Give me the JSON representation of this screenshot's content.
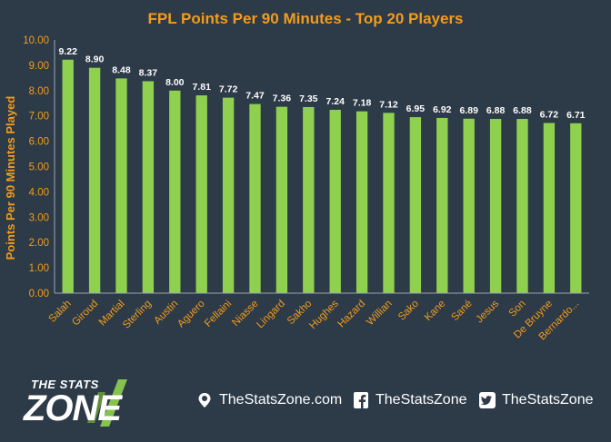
{
  "chart_data": {
    "type": "bar",
    "title": "FPL Points Per 90 Minutes - Top 20 Players",
    "xlabel": "",
    "ylabel": "Points Per 90 Minutes Played",
    "ylim": [
      0,
      10
    ],
    "yticks": [
      "0.00",
      "1.00",
      "2.00",
      "3.00",
      "4.00",
      "5.00",
      "6.00",
      "7.00",
      "8.00",
      "9.00",
      "10.00"
    ],
    "categories": [
      "Salah",
      "Giroud",
      "Martial",
      "Sterling",
      "Austin",
      "Aguero",
      "Fellaini",
      "Niasse",
      "Lingard",
      "Sakho",
      "Hughes",
      "Hazard",
      "Willian",
      "Sako",
      "Kane",
      "Sané",
      "Jesus",
      "Son",
      "De Bruyne",
      "Bernardo..."
    ],
    "values": [
      9.22,
      8.9,
      8.48,
      8.37,
      8.0,
      7.81,
      7.72,
      7.47,
      7.36,
      7.35,
      7.24,
      7.18,
      7.12,
      6.95,
      6.92,
      6.89,
      6.88,
      6.88,
      6.72,
      6.71
    ],
    "value_labels": [
      "9.22",
      "8.90",
      "8.48",
      "8.37",
      "8.00",
      "7.81",
      "7.72",
      "7.47",
      "7.36",
      "7.35",
      "7.24",
      "7.18",
      "7.12",
      "6.95",
      "6.92",
      "6.89",
      "6.88",
      "6.88",
      "6.72",
      "6.71"
    ],
    "grid": false,
    "legend": "none",
    "colors": {
      "bar": "#8fd14f",
      "title": "#f39c1a",
      "axis_text": "#f39c1a",
      "value_label": "#ffffff",
      "background": "#2d3a48",
      "axis_line": "#9aa5b1"
    }
  },
  "footer": {
    "logo_top": "THE STATS",
    "logo_bottom": "ZONE",
    "website": "TheStatsZone.com",
    "facebook": "TheStatsZone",
    "twitter": "TheStatsZone",
    "icons": {
      "website": "globe-pin-icon",
      "facebook": "facebook-icon",
      "twitter": "twitter-icon"
    }
  }
}
